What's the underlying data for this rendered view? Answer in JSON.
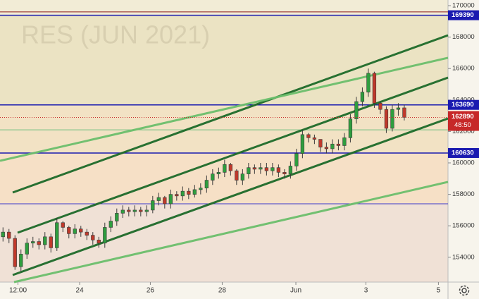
{
  "chart_data": {
    "type": "candlestick",
    "watermark": "RES (JUN 2021)",
    "xlim": [
      -0.5,
      74.3
    ],
    "ylim": [
      152422,
      170359
    ],
    "xticks": [
      {
        "value": 2.5,
        "label": "12:00"
      },
      {
        "value": 12.8,
        "label": "24"
      },
      {
        "value": 24.6,
        "label": "26"
      },
      {
        "value": 36.6,
        "label": "28"
      },
      {
        "value": 48.9,
        "label": "Jun"
      },
      {
        "value": 60.6,
        "label": "3"
      },
      {
        "value": 72.7,
        "label": "5"
      }
    ],
    "yticks": [
      154000,
      156000,
      158000,
      160000,
      162000,
      164000,
      166000,
      168000,
      170000
    ],
    "up_color": "#2e9e3e",
    "down_color": "#c0392b",
    "wick_color": "#3a3a3a",
    "open": [
      155300,
      155600,
      155200,
      153400,
      154200,
      154900,
      155000,
      154800,
      155300,
      154600,
      156200,
      155900,
      155500,
      155800,
      155600,
      155400,
      155100,
      154900,
      155900,
      156300,
      156800,
      157000,
      156900,
      157000,
      156900,
      157000,
      157600,
      157800,
      157400,
      158000,
      157900,
      158200,
      158000,
      158300,
      158400,
      158900,
      159300,
      159400,
      159900,
      159500,
      158900,
      159300,
      159700,
      159600,
      159700,
      159500,
      159700,
      159400,
      159300,
      159800,
      160600,
      161800,
      161600,
      161500,
      161000,
      160900,
      161200,
      161100,
      161600,
      162800,
      163900,
      164500,
      165700,
      163800,
      163400,
      162200,
      163400,
      163500
    ],
    "close": [
      155600,
      155200,
      153400,
      154200,
      154900,
      155000,
      154800,
      155300,
      154600,
      156200,
      155900,
      155500,
      155800,
      155600,
      155400,
      155100,
      154900,
      155900,
      156300,
      156800,
      157000,
      156900,
      157000,
      156900,
      157000,
      157600,
      157800,
      157400,
      158000,
      157900,
      158200,
      158000,
      158300,
      158400,
      158900,
      159300,
      159400,
      159900,
      159500,
      158900,
      159300,
      159700,
      159600,
      159700,
      159500,
      159700,
      159400,
      159300,
      159800,
      160600,
      161800,
      161600,
      161500,
      161000,
      160900,
      161200,
      161100,
      161600,
      162800,
      163900,
      164500,
      165700,
      163800,
      163400,
      162200,
      163400,
      163500,
      162900
    ],
    "high": [
      155900,
      155800,
      155400,
      154500,
      155200,
      155300,
      155200,
      155600,
      155500,
      156500,
      156300,
      156000,
      156100,
      156000,
      155800,
      155600,
      155300,
      156200,
      156600,
      157100,
      157300,
      157200,
      157300,
      157200,
      157300,
      157900,
      158100,
      157900,
      158300,
      158200,
      158500,
      158400,
      158600,
      158700,
      159200,
      159600,
      159700,
      160200,
      160000,
      159600,
      159600,
      160000,
      159900,
      160000,
      160000,
      160000,
      159900,
      159600,
      160100,
      160900,
      162100,
      161900,
      161800,
      161500,
      161300,
      161500,
      161500,
      161900,
      163100,
      164200,
      164800,
      166000,
      165800,
      163900,
      163600,
      163700,
      163800,
      163700
    ],
    "low": [
      155000,
      154900,
      153200,
      153100,
      153900,
      154600,
      154500,
      154500,
      154300,
      154400,
      155600,
      155200,
      155200,
      155300,
      155100,
      154800,
      154600,
      154600,
      155600,
      156000,
      156500,
      156600,
      156600,
      156600,
      156600,
      156800,
      157300,
      157100,
      157100,
      157600,
      157600,
      157700,
      157800,
      158000,
      158100,
      158600,
      159000,
      159100,
      159200,
      158600,
      158600,
      159000,
      159300,
      159300,
      159200,
      159200,
      159100,
      159000,
      159000,
      159500,
      160300,
      161300,
      161200,
      160700,
      160600,
      160600,
      160800,
      160800,
      161300,
      162500,
      163600,
      164200,
      163500,
      163100,
      161900,
      162000,
      163000,
      162700
    ],
    "levels": [
      {
        "value": 169600,
        "color": "#8b1a1a",
        "labeled": false
      },
      {
        "value": 169390,
        "color": "#1a1ab0",
        "labeled": true
      },
      {
        "value": 163690,
        "color": "#1a1ab0",
        "labeled": true
      },
      {
        "value": 162100,
        "color": "#6fbf7f",
        "labeled": false
      },
      {
        "value": 160630,
        "color": "#1a1ab0",
        "labeled": true
      },
      {
        "value": 157400,
        "color": "#3a3ad0",
        "labeled": false
      }
    ],
    "current_price": 162890,
    "countdown": "48:50",
    "current_color": "#c62828",
    "trend_lines": [
      {
        "x": [
          1.62,
          74.3
        ],
        "y": [
          158117,
          168117
        ],
        "color": "#1e6b2a",
        "width": 3
      },
      {
        "x": [
          2.44,
          74.3
        ],
        "y": [
          155561,
          165426
        ],
        "color": "#1e6b2a",
        "width": 3
      },
      {
        "x": [
          1.62,
          74.3
        ],
        "y": [
          152870,
          162825
        ],
        "color": "#1e6b2a",
        "width": 3
      },
      {
        "x": [
          -0.5,
          74.3
        ],
        "y": [
          160135,
          166682
        ],
        "color": "#6cbf6c",
        "width": 3
      },
      {
        "x": [
          1.85,
          74.3
        ],
        "y": [
          152422,
          158789
        ],
        "color": "#6cbf6c",
        "width": 3
      }
    ]
  }
}
